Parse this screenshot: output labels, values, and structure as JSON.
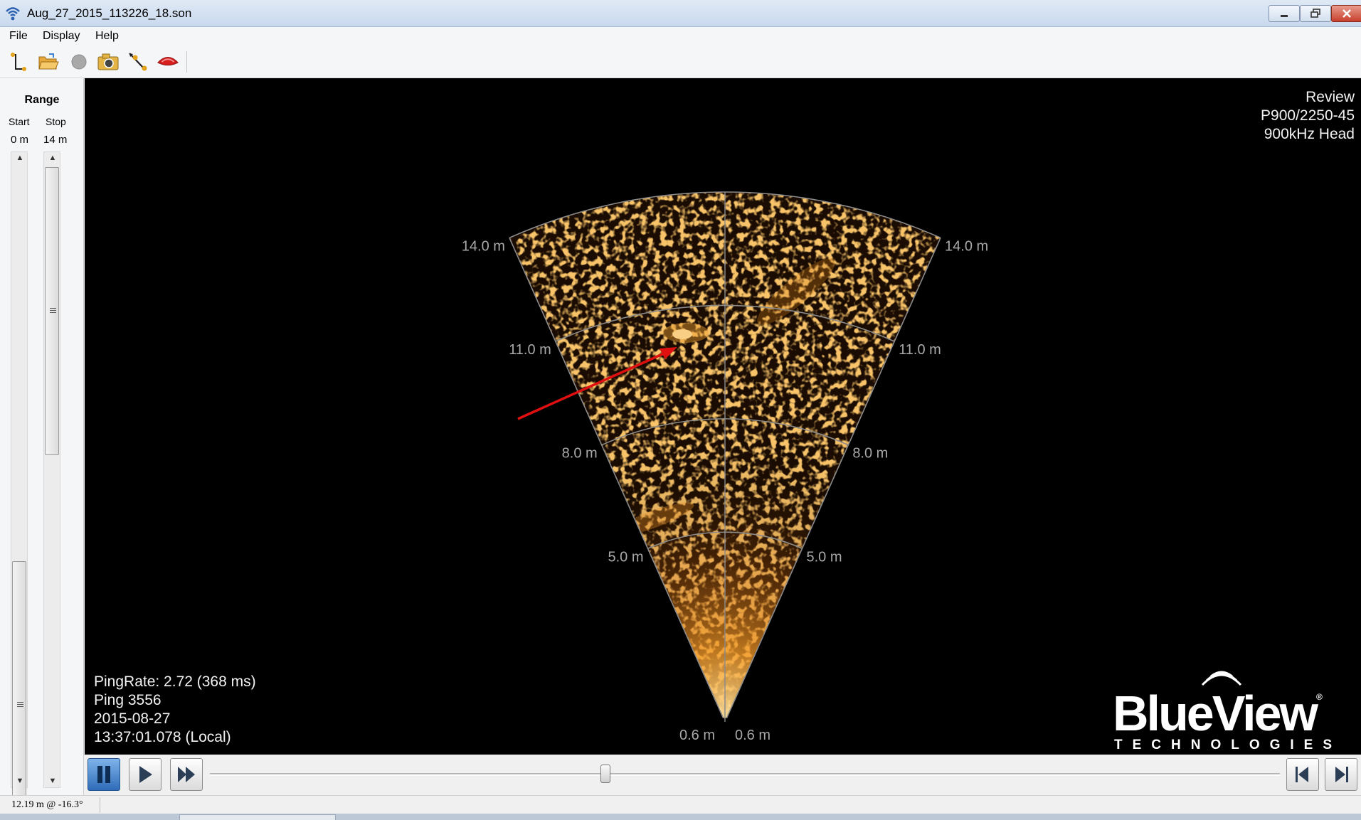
{
  "window": {
    "title": "Aug_27_2015_113226_18.son"
  },
  "menu": {
    "items": [
      "File",
      "Display",
      "Help"
    ]
  },
  "toolbar": {
    "icons": [
      "connect-icon",
      "open-folder-icon",
      "record-icon",
      "camera-icon",
      "measure-icon",
      "sonar-head-icon"
    ]
  },
  "range": {
    "title": "Range",
    "start_label": "Start",
    "stop_label": "Stop",
    "start_value": "0 m",
    "stop_value": "14 m"
  },
  "sonar": {
    "mode": "Review",
    "model": "P900/2250-45",
    "head": "900kHz Head",
    "range_labels": [
      "14.0 m",
      "11.0 m",
      "8.0 m",
      "5.0 m",
      "0.6 m"
    ],
    "ping_rate": "PingRate: 2.72 (368 ms)",
    "ping": "Ping 3556",
    "date": "2015-08-27",
    "time": "13:37:01.078 (Local)",
    "colors": {
      "echo": "#e08a1e",
      "grid": "#8a8a8a",
      "annotation": "#e01010"
    }
  },
  "logo": {
    "name": "BlueView",
    "registered": "®",
    "subtitle": "TECHNOLOGIES"
  },
  "playback": {
    "buttons": [
      "pause-button",
      "play-button",
      "fast-forward-button",
      "step-back-button",
      "step-forward-button"
    ],
    "position": 0.37
  },
  "status": {
    "cursor_readout": "12.19 m @ -16.3°"
  }
}
